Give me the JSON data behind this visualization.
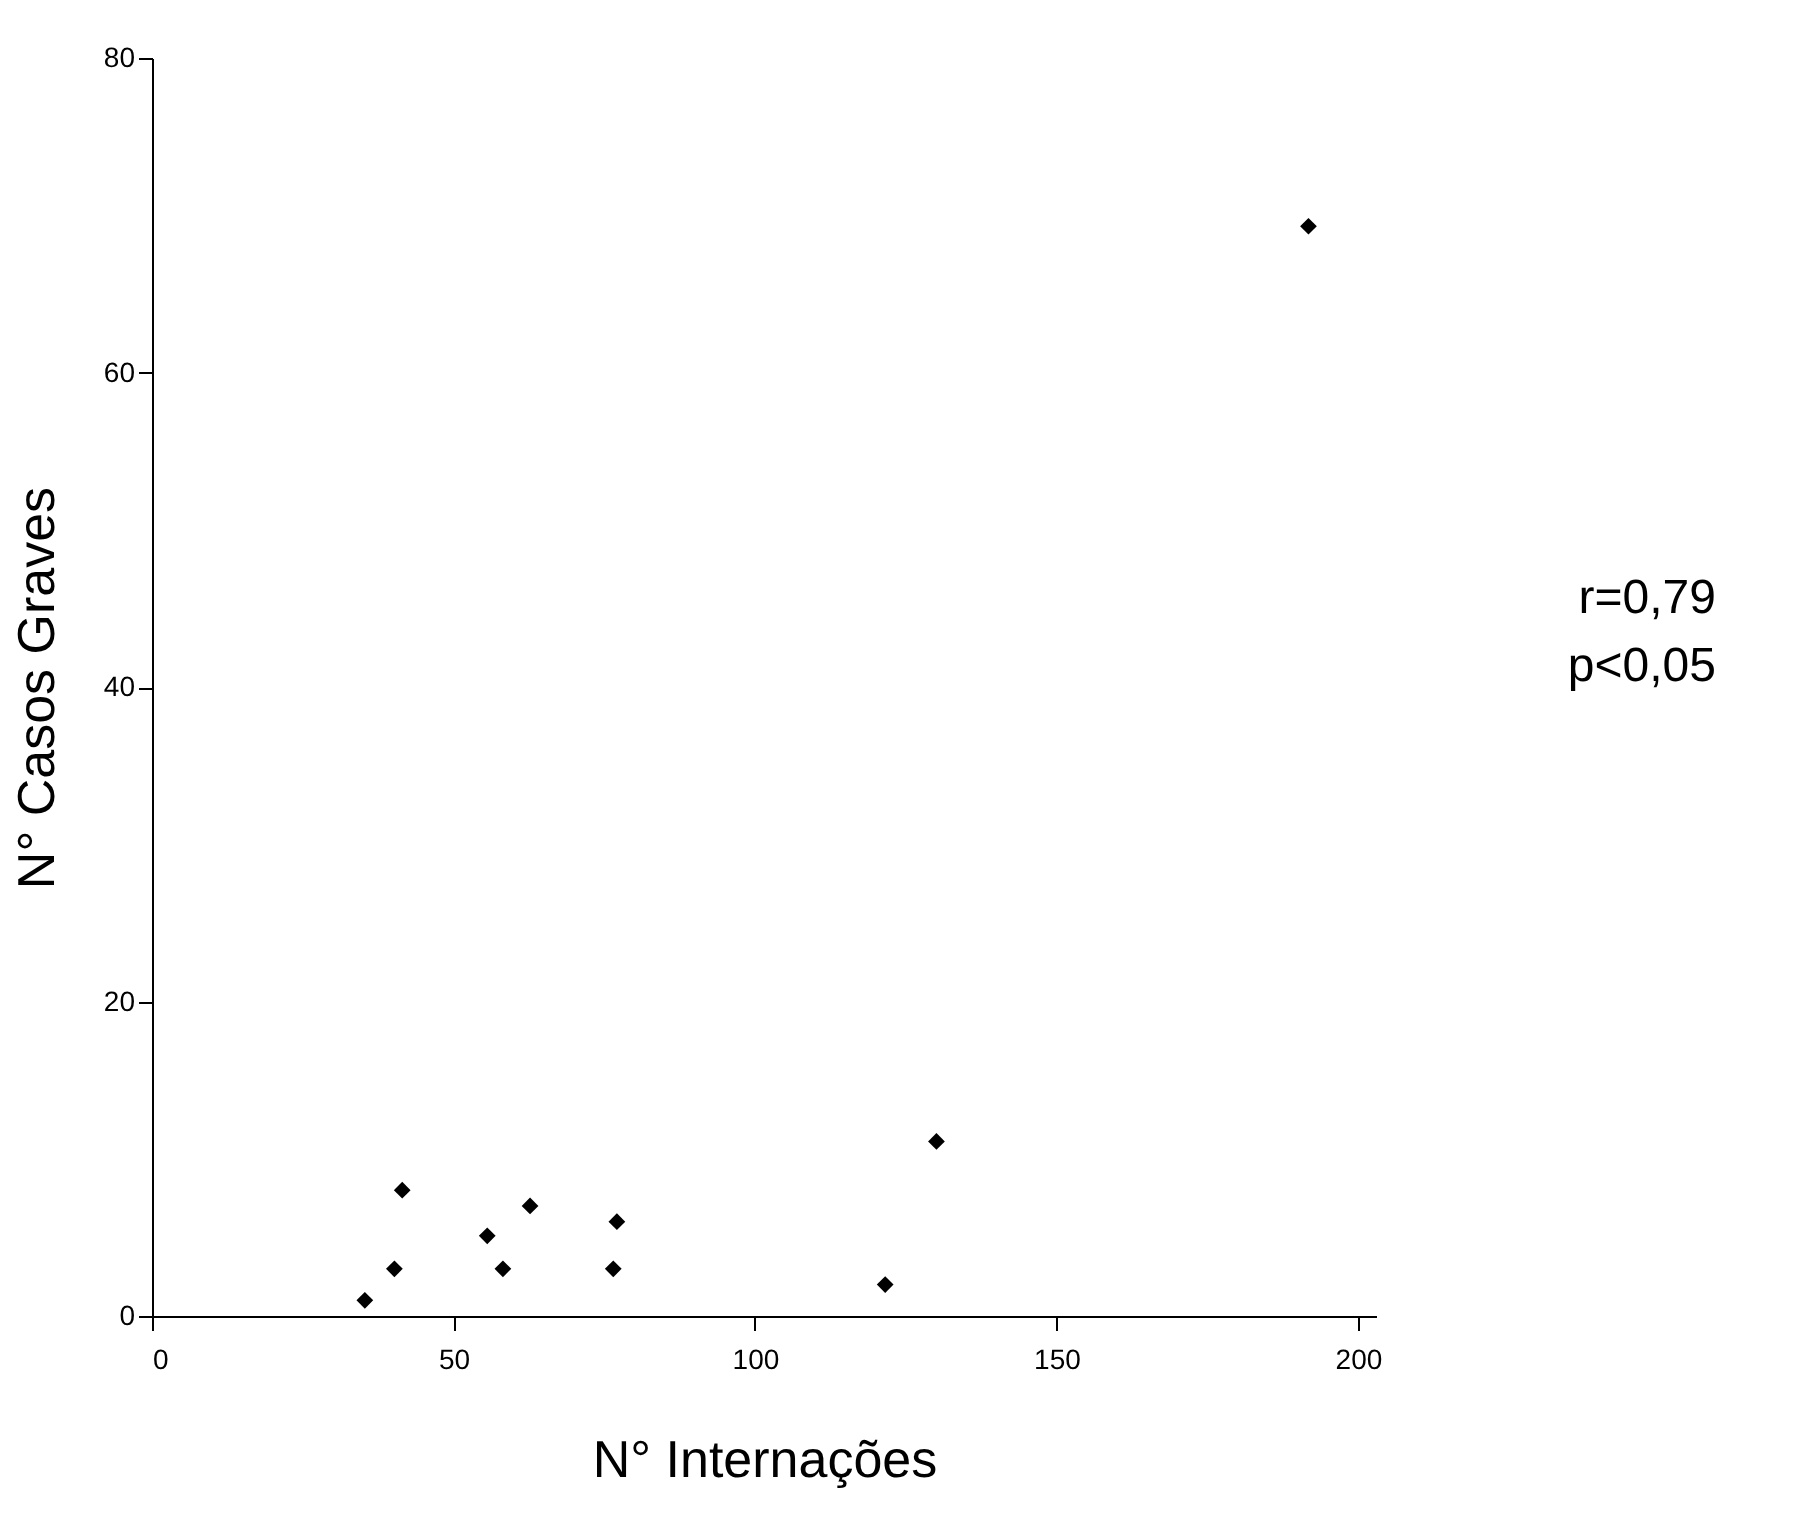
{
  "chart_data": {
    "type": "scatter",
    "xlabel": "N° Internações",
    "ylabel": "N° Casos Graves",
    "x": [
      35.3,
      40.2,
      41.5,
      55.6,
      58.2,
      62.7,
      76.5,
      77.1,
      121.6,
      130.1,
      191.8
    ],
    "series": [
      {
        "color": "#000000",
        "values": [
          1.0,
          3.0,
          8.0,
          5.1,
          3.0,
          7.0,
          3.0,
          6.0,
          2.0,
          11.1,
          69.3
        ]
      }
    ],
    "xlim": [
      0,
      203
    ],
    "xticks": [
      0,
      50,
      100,
      150,
      200
    ],
    "ylim": [
      0,
      80
    ],
    "yticks": [
      0,
      20,
      40,
      60,
      80
    ],
    "marker": "diamond",
    "grid": false,
    "annotations": [
      "r=0,79",
      "p<0,05"
    ]
  }
}
